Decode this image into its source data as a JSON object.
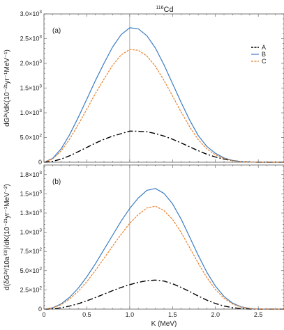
{
  "figure": {
    "title": "116Cd",
    "title_main": "Cd",
    "title_sup": "116",
    "x_axis_label": "K (MeV)"
  },
  "chart_data": [
    {
      "type": "line",
      "panel": "(a)",
      "ylabel": "dG²ᵛ/dK(10⁻²¹yr⁻¹MeV⁻¹)",
      "xlim": [
        0,
        2.8
      ],
      "ylim": [
        0,
        3000
      ],
      "xticks": [
        0,
        0.5,
        1.0,
        1.5,
        2.0,
        2.5
      ],
      "xtick_labels": [
        "0",
        "0.5",
        "1.0",
        "1.5",
        "2.0",
        "2.5"
      ],
      "yticks": [
        0,
        500,
        1000,
        1500,
        2000,
        2500,
        3000
      ],
      "ytick_labels": [
        {
          "mant": "0",
          "exp": ""
        },
        {
          "mant": "5.0×10",
          "exp": "2"
        },
        {
          "mant": "1.0×10",
          "exp": "3"
        },
        {
          "mant": "1.5×10",
          "exp": "3"
        },
        {
          "mant": "2.0×10",
          "exp": "3"
        },
        {
          "mant": "2.5×10",
          "exp": "3"
        },
        {
          "mant": "3.0×10",
          "exp": "3"
        }
      ],
      "vline_x": 1.0,
      "x": [
        0.0,
        0.1,
        0.2,
        0.3,
        0.4,
        0.5,
        0.6,
        0.7,
        0.8,
        0.9,
        1.0,
        1.1,
        1.2,
        1.3,
        1.4,
        1.5,
        1.6,
        1.7,
        1.8,
        1.9,
        2.0,
        2.1,
        2.2,
        2.3,
        2.4,
        2.5,
        2.6,
        2.7,
        2.8
      ],
      "series": [
        {
          "name": "A",
          "color": "#000000",
          "dash": "8,3,2,3",
          "width": 1.4,
          "values": [
            0,
            17,
            63,
            131,
            213,
            300,
            386,
            464,
            528,
            578,
            630,
            627,
            615,
            580,
            530,
            465,
            390,
            310,
            232,
            162,
            105,
            62,
            31,
            12,
            4,
            0,
            0,
            0,
            0
          ]
        },
        {
          "name": "B",
          "color": "#3a7cc4",
          "dash": "",
          "width": 1.2,
          "values": [
            0,
            75,
            270,
            560,
            905,
            1275,
            1650,
            2000,
            2330,
            2580,
            2720,
            2700,
            2560,
            2310,
            1970,
            1590,
            1210,
            850,
            540,
            320,
            180,
            88,
            36,
            12,
            3,
            0,
            0,
            0,
            0
          ]
        },
        {
          "name": "C",
          "color": "#e8822a",
          "dash": "3,1.5",
          "width": 1.2,
          "values": [
            0,
            63,
            227,
            470,
            760,
            1070,
            1390,
            1680,
            1960,
            2170,
            2280,
            2265,
            2150,
            1940,
            1655,
            1340,
            1015,
            715,
            455,
            268,
            150,
            74,
            30,
            10,
            2,
            0,
            0,
            0,
            0
          ]
        }
      ],
      "legend": [
        "A",
        "B",
        "C"
      ],
      "legend_position": "top-right"
    },
    {
      "type": "line",
      "panel": "(b)",
      "ylabel": "d(δG²ᵛ/10aⁱ⁽³⁾)/dK(10⁻²¹yr⁻¹MeV⁻²)",
      "xlim": [
        0,
        2.8
      ],
      "ylim": [
        0,
        1875
      ],
      "xticks": [
        0,
        0.5,
        1.0,
        1.5,
        2.0,
        2.5
      ],
      "xtick_labels": [
        "0",
        "0.5",
        "1.0",
        "1.5",
        "2.0",
        "2.5"
      ],
      "yticks": [
        0,
        250,
        500,
        750,
        1000,
        1250,
        1500,
        1750
      ],
      "ytick_labels": [
        {
          "mant": "0",
          "exp": ""
        },
        {
          "mant": "2.5×10",
          "exp": "2"
        },
        {
          "mant": "5.0×10",
          "exp": "2"
        },
        {
          "mant": "7.5×10",
          "exp": "2"
        },
        {
          "mant": "1.0×10",
          "exp": "3"
        },
        {
          "mant": "1.3×10",
          "exp": "3"
        },
        {
          "mant": "1.5×10",
          "exp": "3"
        },
        {
          "mant": "1.8×10",
          "exp": "3"
        }
      ],
      "vline_x": 1.0,
      "x": [
        0.0,
        0.1,
        0.2,
        0.3,
        0.4,
        0.5,
        0.6,
        0.7,
        0.8,
        0.9,
        1.0,
        1.1,
        1.2,
        1.3,
        1.4,
        1.5,
        1.6,
        1.7,
        1.8,
        1.9,
        2.0,
        2.1,
        2.2,
        2.3,
        2.4,
        2.5,
        2.6,
        2.7,
        2.8
      ],
      "series": [
        {
          "name": "A",
          "color": "#000000",
          "dash": "8,3,2,3",
          "width": 1.4,
          "values": [
            0,
            4,
            17,
            40,
            70,
            108,
            150,
            195,
            240,
            282,
            318,
            348,
            370,
            378,
            365,
            330,
            283,
            228,
            170,
            117,
            73,
            40,
            19,
            7,
            2,
            0,
            0,
            0,
            0
          ]
        },
        {
          "name": "B",
          "color": "#3a7cc4",
          "dash": "",
          "width": 1.2,
          "values": [
            0,
            17,
            68,
            155,
            272,
            420,
            590,
            775,
            960,
            1145,
            1310,
            1445,
            1545,
            1570,
            1505,
            1370,
            1170,
            935,
            700,
            480,
            300,
            165,
            78,
            30,
            9,
            0,
            0,
            0,
            0
          ]
        },
        {
          "name": "C",
          "color": "#e8822a",
          "dash": "3,1.5",
          "width": 1.2,
          "values": [
            0,
            15,
            58,
            132,
            232,
            358,
            503,
            660,
            818,
            975,
            1115,
            1230,
            1315,
            1340,
            1283,
            1168,
            998,
            798,
            597,
            410,
            256,
            141,
            67,
            26,
            8,
            0,
            0,
            0,
            0
          ]
        }
      ]
    }
  ]
}
